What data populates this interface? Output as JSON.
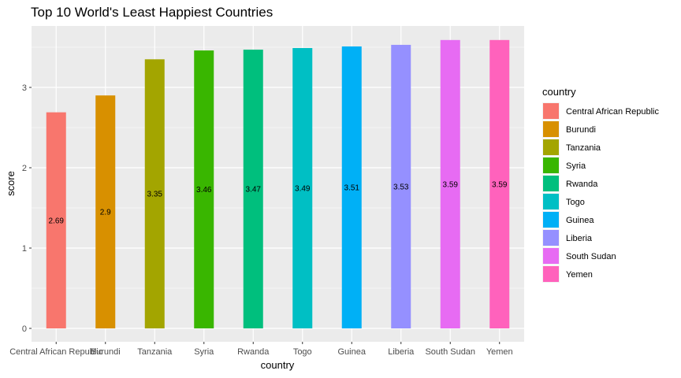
{
  "chart_data": {
    "type": "bar",
    "title": "Top 10 World's Least Happiest Countries",
    "xlabel": "country",
    "ylabel": "score",
    "categories": [
      "Central African Republic",
      "Burundi",
      "Tanzania",
      "Syria",
      "Rwanda",
      "Togo",
      "Guinea",
      "Liberia",
      "South Sudan",
      "Yemen"
    ],
    "values": [
      2.69,
      2.9,
      3.35,
      3.46,
      3.47,
      3.49,
      3.51,
      3.53,
      3.59,
      3.59
    ],
    "data_labels": [
      "2.69",
      "2.9",
      "3.35",
      "3.46",
      "3.47",
      "3.49",
      "3.51",
      "3.53",
      "3.59",
      "3.59"
    ],
    "colors": [
      "#F8766D",
      "#D89000",
      "#A3A500",
      "#39B600",
      "#00BF7D",
      "#00BFC4",
      "#00B0F6",
      "#9590FF",
      "#E76BF3",
      "#FF62BC"
    ],
    "ylim": [
      0,
      3.77
    ],
    "yticks": [
      0,
      1,
      2,
      3
    ],
    "ytick_labels": [
      "0",
      "1",
      "2",
      "3"
    ],
    "grid": true,
    "panel_background": "#EBEBEB",
    "grid_color": "#FFFFFF",
    "legend": {
      "title": "country",
      "position": "right"
    }
  }
}
